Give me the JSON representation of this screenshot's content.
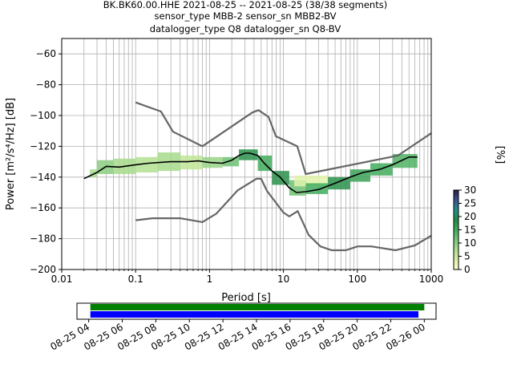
{
  "header": {
    "line1": "BK.BK60.00.HHE   2021-08-25 -- 2021-08-25  (38/38 segments)",
    "line2": "sensor_type MBB-2 sensor_sn MBB2-BV",
    "line3": "datalogger_type Q8 datalogger_sn Q8-BV"
  },
  "colorbar": {
    "label": "[%]",
    "ticks": [
      "0",
      "5",
      "10",
      "15",
      "20",
      "25",
      "30"
    ],
    "min": 0,
    "max": 30,
    "colors": [
      "#ffffcc",
      "#d9f0a3",
      "#addd8e",
      "#78c679",
      "#41ab5d",
      "#238b45",
      "#21908c",
      "#3b528b",
      "#2c1a4a"
    ]
  },
  "chart_data": [
    {
      "type": "line",
      "title": "",
      "xlabel": "Period [s]",
      "ylabel": "Power [m²/s⁴/Hz] [dB]",
      "x_scale": "log",
      "xlim": [
        0.01,
        1000
      ],
      "ylim": [
        -200,
        -50
      ],
      "x_ticks": [
        {
          "value": 0.01,
          "label": "0.01"
        },
        {
          "value": 0.1,
          "label": "0.1"
        },
        {
          "value": 1,
          "label": "1"
        },
        {
          "value": 10,
          "label": "10"
        },
        {
          "value": 100,
          "label": "100"
        },
        {
          "value": 1000,
          "label": "1000"
        }
      ],
      "y_ticks": [
        {
          "value": -60,
          "label": "−60"
        },
        {
          "value": -80,
          "label": "−80"
        },
        {
          "value": -100,
          "label": "−100"
        },
        {
          "value": -120,
          "label": "−120"
        },
        {
          "value": -140,
          "label": "−140"
        },
        {
          "value": -160,
          "label": "−160"
        },
        {
          "value": -180,
          "label": "−180"
        },
        {
          "value": -200,
          "label": "−200"
        }
      ],
      "grid": true,
      "series": [
        {
          "role": "high-noise-model",
          "color": "#666666",
          "points": [
            [
              0.1,
              -91.5
            ],
            [
              0.22,
              -97.4
            ],
            [
              0.32,
              -110.5
            ],
            [
              0.8,
              -120
            ],
            [
              3.8,
              -98
            ],
            [
              4.6,
              -96.5
            ],
            [
              6.3,
              -101
            ],
            [
              7.9,
              -113.5
            ],
            [
              15.4,
              -120
            ],
            [
              20,
              -138
            ],
            [
              354.8,
              -126
            ],
            [
              1000,
              -111.5
            ]
          ]
        },
        {
          "role": "low-noise-model",
          "color": "#666666",
          "points": [
            [
              0.1,
              -168
            ],
            [
              0.17,
              -166.7
            ],
            [
              0.4,
              -166.7
            ],
            [
              0.8,
              -169.2
            ],
            [
              1.24,
              -163.7
            ],
            [
              2.4,
              -148.6
            ],
            [
              4.3,
              -141.1
            ],
            [
              5,
              -141.1
            ],
            [
              6,
              -149
            ],
            [
              10,
              -163
            ],
            [
              12,
              -165.5
            ],
            [
              15.6,
              -162.1
            ],
            [
              21.9,
              -177.5
            ],
            [
              31.6,
              -185
            ],
            [
              45,
              -187.5
            ],
            [
              70,
              -187.5
            ],
            [
              101,
              -185
            ],
            [
              154,
              -185
            ],
            [
              328,
              -187.5
            ],
            [
              600,
              -184.4
            ],
            [
              1000,
              -178
            ]
          ]
        },
        {
          "role": "mode",
          "color": "#000000",
          "points": [
            [
              0.02,
              -141
            ],
            [
              0.03,
              -137
            ],
            [
              0.04,
              -133
            ],
            [
              0.06,
              -133.5
            ],
            [
              0.1,
              -132
            ],
            [
              0.15,
              -131
            ],
            [
              0.3,
              -130
            ],
            [
              0.5,
              -130
            ],
            [
              0.7,
              -129.5
            ],
            [
              1,
              -130.5
            ],
            [
              1.5,
              -131
            ],
            [
              2,
              -129
            ],
            [
              2.5,
              -126
            ],
            [
              3,
              -124.5
            ],
            [
              3.5,
              -124.5
            ],
            [
              4.5,
              -126
            ],
            [
              5.5,
              -131
            ],
            [
              7,
              -136
            ],
            [
              9,
              -140
            ],
            [
              12,
              -147
            ],
            [
              15,
              -150
            ],
            [
              20,
              -149.5
            ],
            [
              30,
              -148
            ],
            [
              50,
              -144
            ],
            [
              80,
              -140
            ],
            [
              120,
              -137
            ],
            [
              200,
              -135
            ],
            [
              300,
              -132
            ],
            [
              500,
              -127
            ],
            [
              650,
              -127
            ]
          ]
        }
      ],
      "density": [
        {
          "x0": 0.024,
          "x1": 0.03,
          "y0": -140,
          "y1": -135,
          "pct": 8
        },
        {
          "x0": 0.03,
          "x1": 0.05,
          "y0": -138,
          "y1": -129,
          "pct": 10
        },
        {
          "x0": 0.05,
          "x1": 0.1,
          "y0": -138,
          "y1": -128,
          "pct": 8
        },
        {
          "x0": 0.1,
          "x1": 0.2,
          "y0": -137,
          "y1": -127,
          "pct": 7
        },
        {
          "x0": 0.2,
          "x1": 0.4,
          "y0": -136,
          "y1": -124,
          "pct": 8
        },
        {
          "x0": 0.4,
          "x1": 0.8,
          "y0": -135,
          "y1": -126,
          "pct": 6
        },
        {
          "x0": 0.8,
          "x1": 1.5,
          "y0": -134,
          "y1": -127,
          "pct": 9
        },
        {
          "x0": 1.5,
          "x1": 2.5,
          "y0": -133,
          "y1": -127,
          "pct": 12
        },
        {
          "x0": 2.5,
          "x1": 4.5,
          "y0": -129,
          "y1": -122,
          "pct": 18
        },
        {
          "x0": 4.5,
          "x1": 7,
          "y0": -136,
          "y1": -126,
          "pct": 15
        },
        {
          "x0": 7,
          "x1": 12,
          "y0": -145,
          "y1": -136,
          "pct": 18
        },
        {
          "x0": 12,
          "x1": 20,
          "y0": -152,
          "y1": -142,
          "pct": 12
        },
        {
          "x0": 14,
          "x1": 40,
          "y0": -146,
          "y1": -139,
          "pct": 3
        },
        {
          "x0": 20,
          "x1": 40,
          "y0": -151,
          "y1": -144,
          "pct": 15
        },
        {
          "x0": 40,
          "x1": 80,
          "y0": -148,
          "y1": -140,
          "pct": 18
        },
        {
          "x0": 80,
          "x1": 150,
          "y0": -143,
          "y1": -135,
          "pct": 16
        },
        {
          "x0": 150,
          "x1": 300,
          "y0": -139,
          "y1": -131,
          "pct": 15
        },
        {
          "x0": 300,
          "x1": 650,
          "y0": -134,
          "y1": -125,
          "pct": 14
        }
      ]
    },
    {
      "type": "timeline",
      "x_ticks": [
        {
          "value": 4,
          "label": "08-25 04"
        },
        {
          "value": 6,
          "label": "08-25 06"
        },
        {
          "value": 8,
          "label": "08-25 08"
        },
        {
          "value": 10,
          "label": "08-25 10"
        },
        {
          "value": 12,
          "label": "08-25 12"
        },
        {
          "value": 14,
          "label": "08-25 14"
        },
        {
          "value": 16,
          "label": "08-25 16"
        },
        {
          "value": 18,
          "label": "08-25 18"
        },
        {
          "value": 20,
          "label": "08-25 20"
        },
        {
          "value": 22,
          "label": "08-25 22"
        },
        {
          "value": 24,
          "label": "08-26 00"
        }
      ],
      "xlim": [
        3.3,
        24.7
      ],
      "bars": [
        {
          "role": "data-availability",
          "color": "#008000",
          "start": 4.1,
          "end": 24.0
        },
        {
          "role": "psd-coverage",
          "color": "#0000ff",
          "start": 4.1,
          "end": 23.65
        }
      ]
    }
  ]
}
